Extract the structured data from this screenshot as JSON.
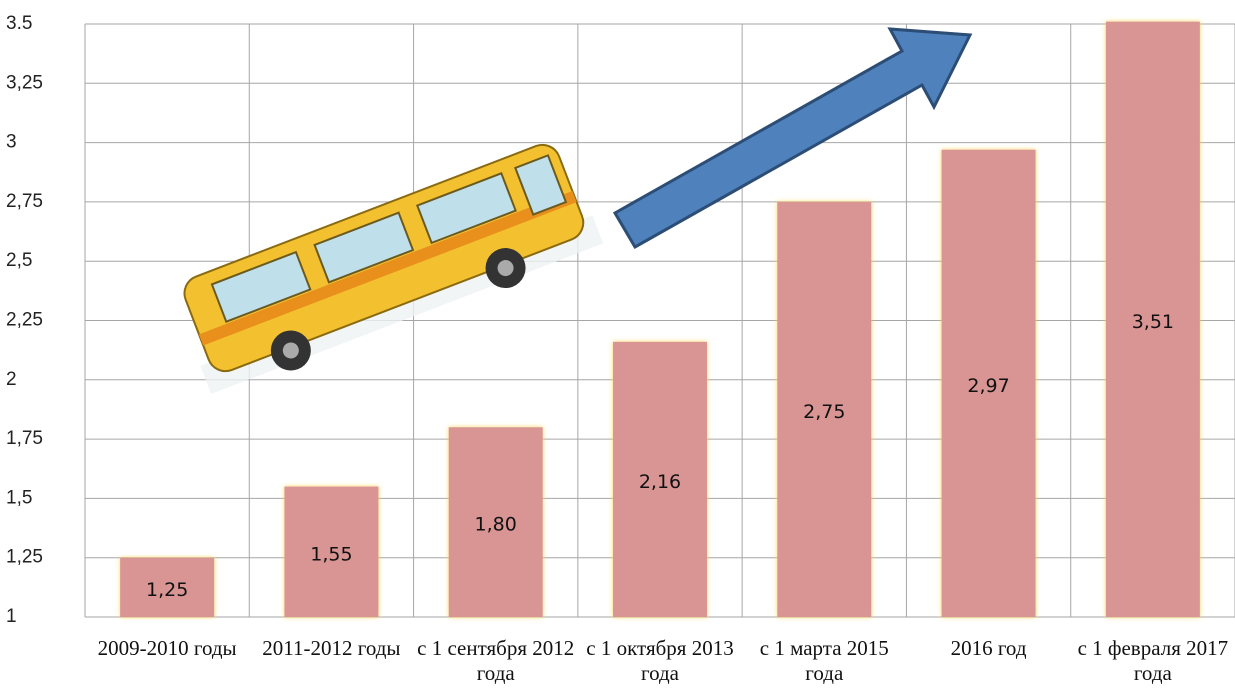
{
  "chart_data": {
    "type": "bar",
    "categories": [
      "2009-2010 годы",
      "2011-2012 годы",
      "с 1 сентября 2012 года",
      "с 1 октября 2013 года",
      "с 1 марта 2015 года",
      "2016 год",
      "с 1 февраля 2017 года"
    ],
    "values": [
      1.25,
      1.55,
      1.8,
      2.16,
      2.75,
      2.97,
      3.51
    ],
    "value_labels": [
      "1,25",
      "1,55",
      "1,80",
      "2,16",
      "2,75",
      "2,97",
      "3,51"
    ],
    "color": "#d99594",
    "ylim": [
      1,
      3.5
    ],
    "yticks": [
      1,
      {
        "value": 1.25,
        "label": "1,25"
      },
      {
        "value": 1.5,
        "label": "1,5"
      },
      {
        "value": 1.75,
        "label": "1,75"
      },
      2,
      {
        "value": 2.25,
        "label": "2,25"
      },
      {
        "value": 2.5,
        "label": "2,5"
      },
      {
        "value": 2.75,
        "label": "2,75"
      },
      3,
      {
        "value": 3.25,
        "label": "3,25"
      },
      3.5
    ],
    "grid": true
  }
}
